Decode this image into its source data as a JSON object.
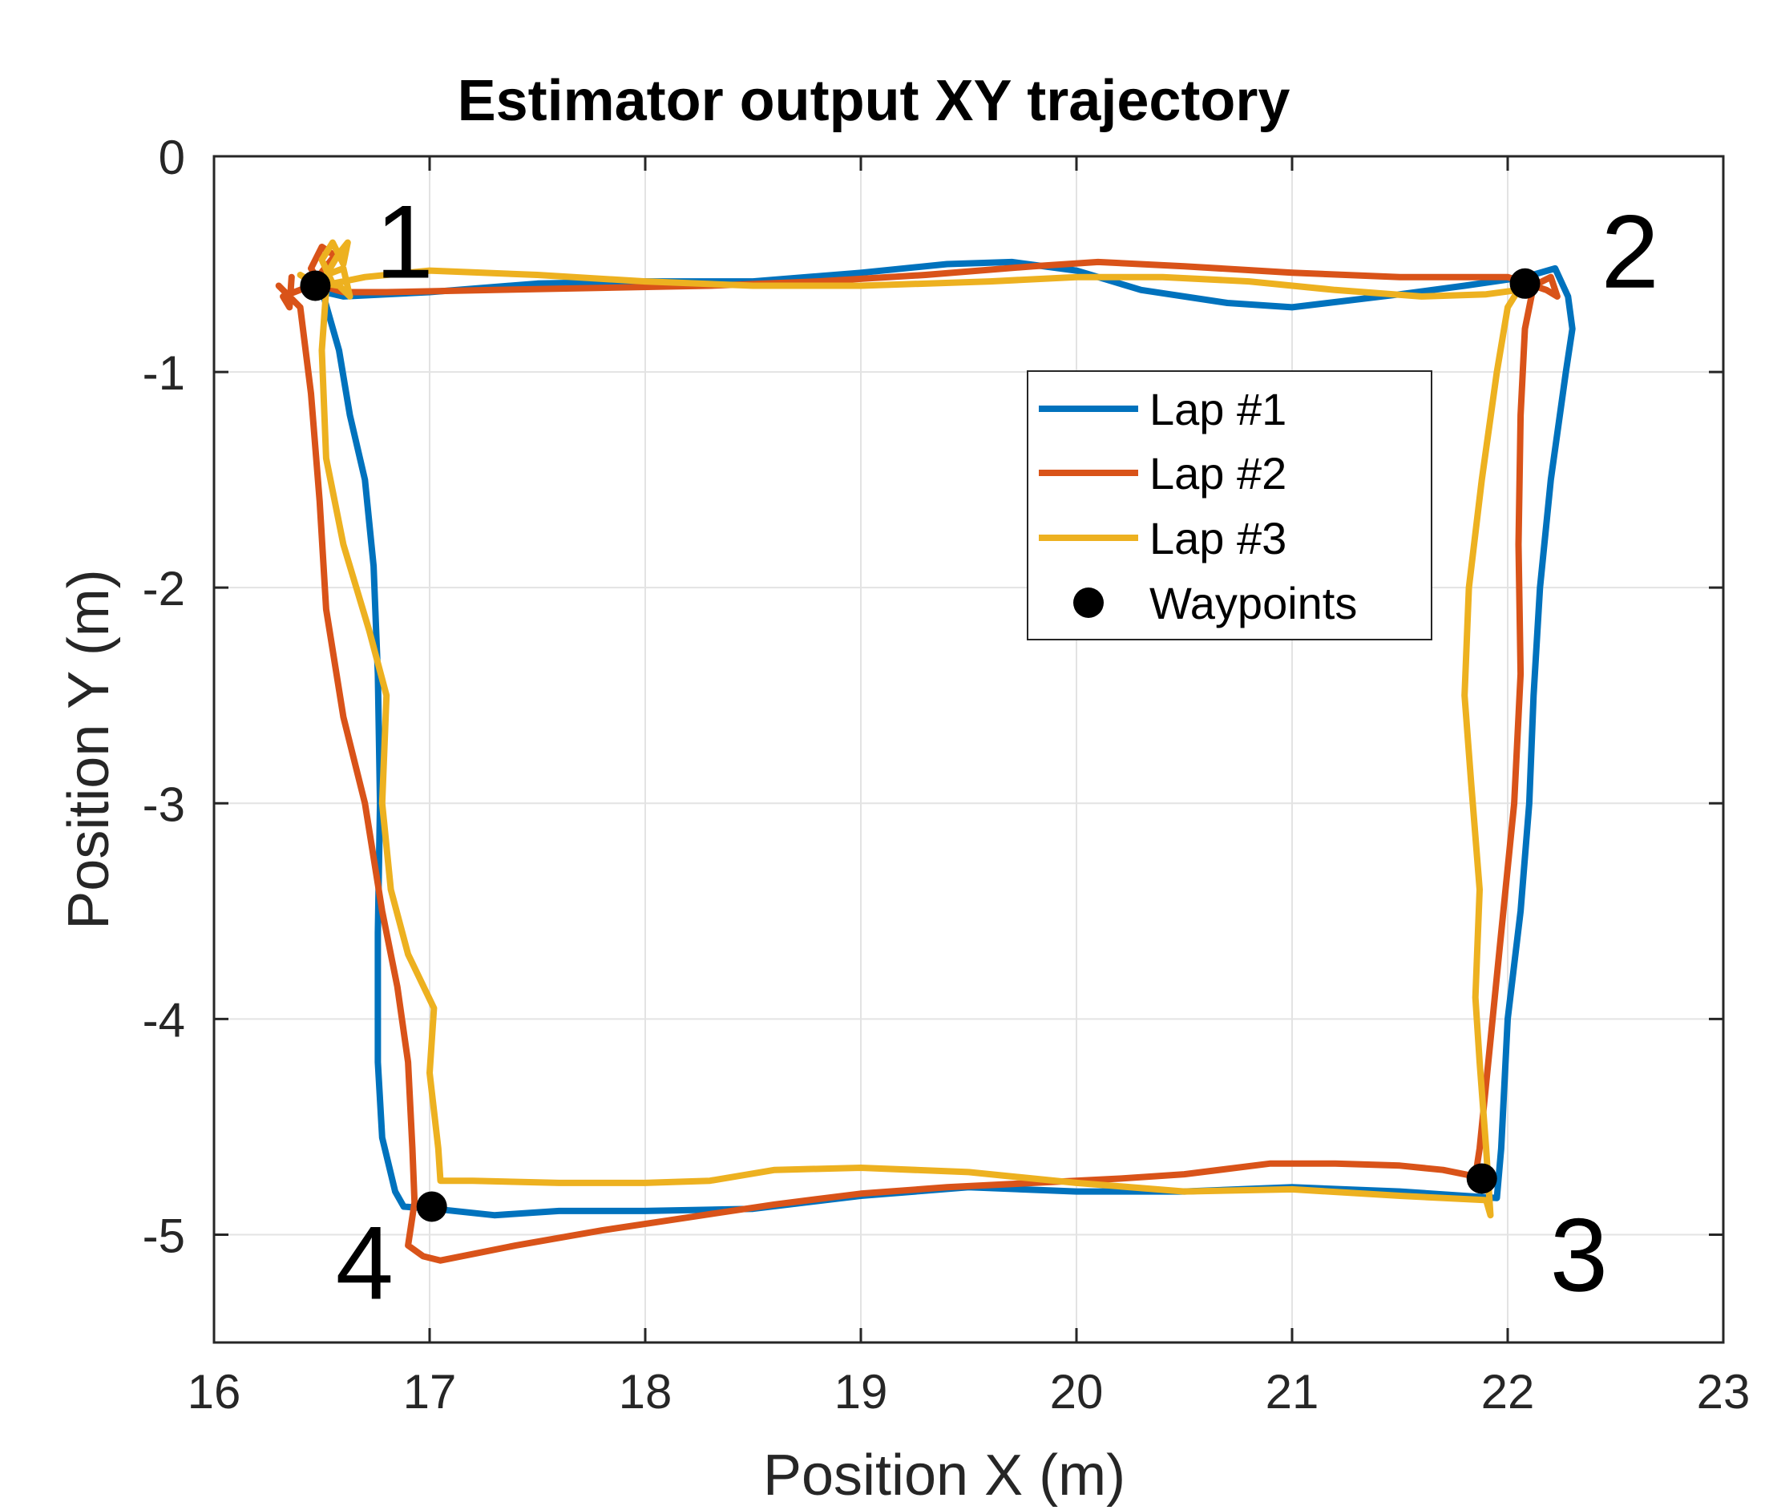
{
  "chart_data": {
    "type": "line",
    "title": "Estimator output XY trajectory",
    "xlabel": "Position X (m)",
    "ylabel": "Position Y (m)",
    "xlim": [
      16,
      23
    ],
    "ylim": [
      -5.5,
      0
    ],
    "xticks": [
      16,
      17,
      18,
      19,
      20,
      21,
      22,
      23
    ],
    "yticks": [
      0,
      -1,
      -2,
      -3,
      -4,
      -5
    ],
    "grid": true,
    "legend_position": "upper-center-right",
    "series": [
      {
        "name": "Lap #1",
        "color": "#0072BD",
        "points": [
          [
            16.5,
            -0.62
          ],
          [
            16.58,
            -0.9
          ],
          [
            16.63,
            -1.2
          ],
          [
            16.7,
            -1.5
          ],
          [
            16.74,
            -1.9
          ],
          [
            16.76,
            -2.4
          ],
          [
            16.77,
            -3.0
          ],
          [
            16.76,
            -3.6
          ],
          [
            16.76,
            -4.2
          ],
          [
            16.78,
            -4.55
          ],
          [
            16.84,
            -4.8
          ],
          [
            16.88,
            -4.87
          ],
          [
            17.02,
            -4.88
          ],
          [
            17.3,
            -4.91
          ],
          [
            17.6,
            -4.89
          ],
          [
            18.0,
            -4.89
          ],
          [
            18.5,
            -4.88
          ],
          [
            19.0,
            -4.82
          ],
          [
            19.5,
            -4.78
          ],
          [
            20.0,
            -4.8
          ],
          [
            20.5,
            -4.8
          ],
          [
            21.0,
            -4.78
          ],
          [
            21.5,
            -4.8
          ],
          [
            21.95,
            -4.83
          ],
          [
            21.97,
            -4.6
          ],
          [
            22.0,
            -4.0
          ],
          [
            22.06,
            -3.5
          ],
          [
            22.1,
            -3.0
          ],
          [
            22.12,
            -2.5
          ],
          [
            22.15,
            -2.0
          ],
          [
            22.2,
            -1.5
          ],
          [
            22.27,
            -1.0
          ],
          [
            22.3,
            -0.8
          ],
          [
            22.28,
            -0.65
          ],
          [
            22.22,
            -0.52
          ],
          [
            22.08,
            -0.56
          ],
          [
            21.8,
            -0.6
          ],
          [
            21.5,
            -0.64
          ],
          [
            21.0,
            -0.7
          ],
          [
            20.7,
            -0.68
          ],
          [
            20.3,
            -0.62
          ],
          [
            20.0,
            -0.53
          ],
          [
            19.7,
            -0.49
          ],
          [
            19.4,
            -0.5
          ],
          [
            19.0,
            -0.54
          ],
          [
            18.5,
            -0.58
          ],
          [
            18.0,
            -0.58
          ],
          [
            17.5,
            -0.59
          ],
          [
            17.0,
            -0.63
          ],
          [
            16.6,
            -0.65
          ],
          [
            16.47,
            -0.62
          ]
        ]
      },
      {
        "name": "Lap #2",
        "color": "#D95319",
        "points": [
          [
            16.3,
            -0.6
          ],
          [
            16.4,
            -0.7
          ],
          [
            16.45,
            -1.1
          ],
          [
            16.49,
            -1.6
          ],
          [
            16.52,
            -2.1
          ],
          [
            16.6,
            -2.6
          ],
          [
            16.7,
            -3.0
          ],
          [
            16.78,
            -3.5
          ],
          [
            16.85,
            -3.85
          ],
          [
            16.9,
            -4.2
          ],
          [
            16.92,
            -4.6
          ],
          [
            16.93,
            -4.85
          ],
          [
            16.9,
            -5.05
          ],
          [
            16.97,
            -5.1
          ],
          [
            17.05,
            -5.12
          ],
          [
            17.4,
            -5.05
          ],
          [
            17.8,
            -4.98
          ],
          [
            18.2,
            -4.92
          ],
          [
            18.6,
            -4.86
          ],
          [
            19.0,
            -4.81
          ],
          [
            19.4,
            -4.78
          ],
          [
            19.8,
            -4.76
          ],
          [
            20.2,
            -4.74
          ],
          [
            20.5,
            -4.72
          ],
          [
            20.9,
            -4.67
          ],
          [
            21.2,
            -4.67
          ],
          [
            21.5,
            -4.68
          ],
          [
            21.7,
            -4.7
          ],
          [
            21.85,
            -4.73
          ],
          [
            21.87,
            -4.6
          ],
          [
            21.92,
            -4.1
          ],
          [
            21.97,
            -3.6
          ],
          [
            22.03,
            -3.0
          ],
          [
            22.06,
            -2.4
          ],
          [
            22.05,
            -1.8
          ],
          [
            22.06,
            -1.2
          ],
          [
            22.08,
            -0.8
          ],
          [
            22.12,
            -0.6
          ],
          [
            22.2,
            -0.56
          ],
          [
            22.23,
            -0.65
          ],
          [
            22.18,
            -0.62
          ],
          [
            22.0,
            -0.56
          ],
          [
            21.5,
            -0.56
          ],
          [
            21.0,
            -0.54
          ],
          [
            20.5,
            -0.51
          ],
          [
            20.1,
            -0.49
          ],
          [
            19.8,
            -0.51
          ],
          [
            19.3,
            -0.55
          ],
          [
            18.8,
            -0.58
          ],
          [
            18.3,
            -0.6
          ],
          [
            17.8,
            -0.61
          ],
          [
            17.3,
            -0.62
          ],
          [
            16.8,
            -0.63
          ],
          [
            16.6,
            -0.63
          ],
          [
            16.5,
            -0.6
          ],
          [
            16.45,
            -0.52
          ],
          [
            16.5,
            -0.42
          ],
          [
            16.56,
            -0.46
          ],
          [
            16.45,
            -0.6
          ],
          [
            16.32,
            -0.65
          ],
          [
            16.35,
            -0.7
          ],
          [
            16.36,
            -0.56
          ]
        ]
      },
      {
        "name": "Lap #3",
        "color": "#EDB120",
        "points": [
          [
            16.52,
            -0.62
          ],
          [
            16.5,
            -0.9
          ],
          [
            16.52,
            -1.4
          ],
          [
            16.6,
            -1.8
          ],
          [
            16.72,
            -2.2
          ],
          [
            16.8,
            -2.5
          ],
          [
            16.78,
            -3.0
          ],
          [
            16.82,
            -3.4
          ],
          [
            16.9,
            -3.7
          ],
          [
            17.02,
            -3.95
          ],
          [
            17.0,
            -4.25
          ],
          [
            17.04,
            -4.6
          ],
          [
            17.05,
            -4.75
          ],
          [
            17.2,
            -4.75
          ],
          [
            17.6,
            -4.76
          ],
          [
            18.0,
            -4.76
          ],
          [
            18.3,
            -4.75
          ],
          [
            18.6,
            -4.7
          ],
          [
            19.0,
            -4.69
          ],
          [
            19.5,
            -4.71
          ],
          [
            20.0,
            -4.76
          ],
          [
            20.5,
            -4.8
          ],
          [
            21.0,
            -4.79
          ],
          [
            21.5,
            -4.82
          ],
          [
            21.9,
            -4.84
          ],
          [
            21.92,
            -4.91
          ],
          [
            21.9,
            -4.6
          ],
          [
            21.87,
            -4.2
          ],
          [
            21.85,
            -3.9
          ],
          [
            21.87,
            -3.4
          ],
          [
            21.83,
            -2.9
          ],
          [
            21.8,
            -2.5
          ],
          [
            21.82,
            -2.0
          ],
          [
            21.88,
            -1.5
          ],
          [
            21.95,
            -1.0
          ],
          [
            22.0,
            -0.7
          ],
          [
            22.05,
            -0.62
          ],
          [
            21.9,
            -0.64
          ],
          [
            21.6,
            -0.65
          ],
          [
            21.2,
            -0.62
          ],
          [
            20.8,
            -0.58
          ],
          [
            20.4,
            -0.56
          ],
          [
            20.0,
            -0.56
          ],
          [
            19.6,
            -0.58
          ],
          [
            19.0,
            -0.6
          ],
          [
            18.5,
            -0.6
          ],
          [
            18.0,
            -0.58
          ],
          [
            17.5,
            -0.55
          ],
          [
            17.0,
            -0.53
          ],
          [
            16.7,
            -0.56
          ],
          [
            16.55,
            -0.59
          ],
          [
            16.5,
            -0.48
          ],
          [
            16.55,
            -0.4
          ],
          [
            16.6,
            -0.5
          ],
          [
            16.62,
            -0.4
          ],
          [
            16.58,
            -0.45
          ],
          [
            16.52,
            -0.55
          ],
          [
            16.6,
            -0.52
          ],
          [
            16.63,
            -0.65
          ],
          [
            16.58,
            -0.6
          ],
          [
            16.45,
            -0.58
          ],
          [
            16.4,
            -0.55
          ]
        ]
      }
    ],
    "waypoints": {
      "name": "Waypoints",
      "color": "#000000",
      "points": [
        [
          16.47,
          -0.6
        ],
        [
          22.08,
          -0.59
        ],
        [
          21.88,
          -4.74
        ],
        [
          17.01,
          -4.87
        ]
      ],
      "labels": [
        "1",
        "2",
        "3",
        "4"
      ]
    }
  }
}
